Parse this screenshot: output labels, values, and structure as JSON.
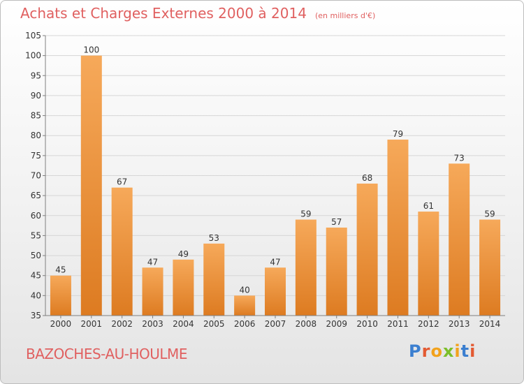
{
  "title": "Achats et Charges Externes 2000 à 2014",
  "subtitle": "(en milliers d'€)",
  "place_name": "BAZOCHES-AU-HOULME",
  "logo": {
    "text": "Proxiti",
    "letter_colors": [
      "#3b7fd0",
      "#e35a32",
      "#f2a21c",
      "#7bbf2a",
      "#f2a21c",
      "#3b7fd0",
      "#e35a32"
    ]
  },
  "colors": {
    "title": "#e06060",
    "bar_top": "#f6a95a",
    "bar_bottom": "#dd7b21",
    "grid": "#d6d6d6",
    "axis": "#7f7f7f",
    "label": "#333333"
  },
  "chart_data": {
    "type": "bar",
    "categories": [
      "2000",
      "2001",
      "2002",
      "2003",
      "2004",
      "2005",
      "2006",
      "2007",
      "2008",
      "2009",
      "2010",
      "2011",
      "2012",
      "2013",
      "2014"
    ],
    "values": [
      45,
      100,
      67,
      47,
      49,
      53,
      40,
      47,
      59,
      57,
      68,
      79,
      61,
      73,
      59
    ],
    "ylim": [
      35,
      105
    ],
    "yticks": [
      35,
      40,
      45,
      50,
      55,
      60,
      65,
      70,
      75,
      80,
      85,
      90,
      95,
      100,
      105
    ],
    "grid": true,
    "data_labels": true
  }
}
